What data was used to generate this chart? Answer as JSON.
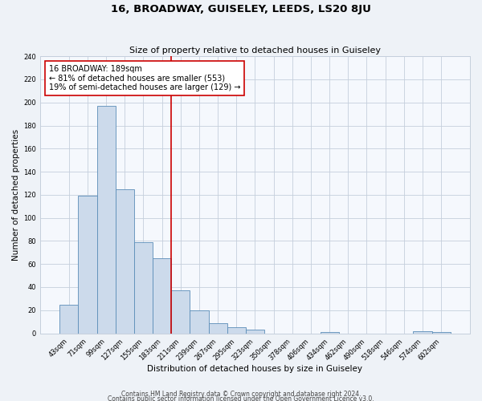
{
  "title": "16, BROADWAY, GUISELEY, LEEDS, LS20 8JU",
  "subtitle": "Size of property relative to detached houses in Guiseley",
  "xlabel": "Distribution of detached houses by size in Guiseley",
  "ylabel": "Number of detached properties",
  "bin_labels": [
    "43sqm",
    "71sqm",
    "99sqm",
    "127sqm",
    "155sqm",
    "183sqm",
    "211sqm",
    "239sqm",
    "267sqm",
    "295sqm",
    "323sqm",
    "350sqm",
    "378sqm",
    "406sqm",
    "434sqm",
    "462sqm",
    "490sqm",
    "518sqm",
    "546sqm",
    "574sqm",
    "602sqm"
  ],
  "bar_values": [
    25,
    119,
    197,
    125,
    79,
    65,
    37,
    20,
    9,
    5,
    3,
    0,
    0,
    0,
    1,
    0,
    0,
    0,
    0,
    2,
    1
  ],
  "bar_color": "#ccdaeb",
  "bar_edge_color": "#5b8db8",
  "vline_x": 6.0,
  "vline_color": "#cc0000",
  "annotation_text": "16 BROADWAY: 189sqm\n← 81% of detached houses are smaller (553)\n19% of semi-detached houses are larger (129) →",
  "annotation_box_color": "#ffffff",
  "annotation_box_edge": "#cc0000",
  "ylim": [
    0,
    240
  ],
  "yticks": [
    0,
    20,
    40,
    60,
    80,
    100,
    120,
    140,
    160,
    180,
    200,
    220,
    240
  ],
  "footer1": "Contains HM Land Registry data © Crown copyright and database right 2024.",
  "footer2": "Contains public sector information licensed under the Open Government Licence v3.0.",
  "title_fontsize": 9.5,
  "subtitle_fontsize": 8,
  "axis_label_fontsize": 7.5,
  "tick_fontsize": 6,
  "annotation_fontsize": 7,
  "footer_fontsize": 5.5,
  "bg_color": "#eef2f7",
  "plot_bg_color": "#f5f8fd",
  "grid_color": "#c5cfdc"
}
